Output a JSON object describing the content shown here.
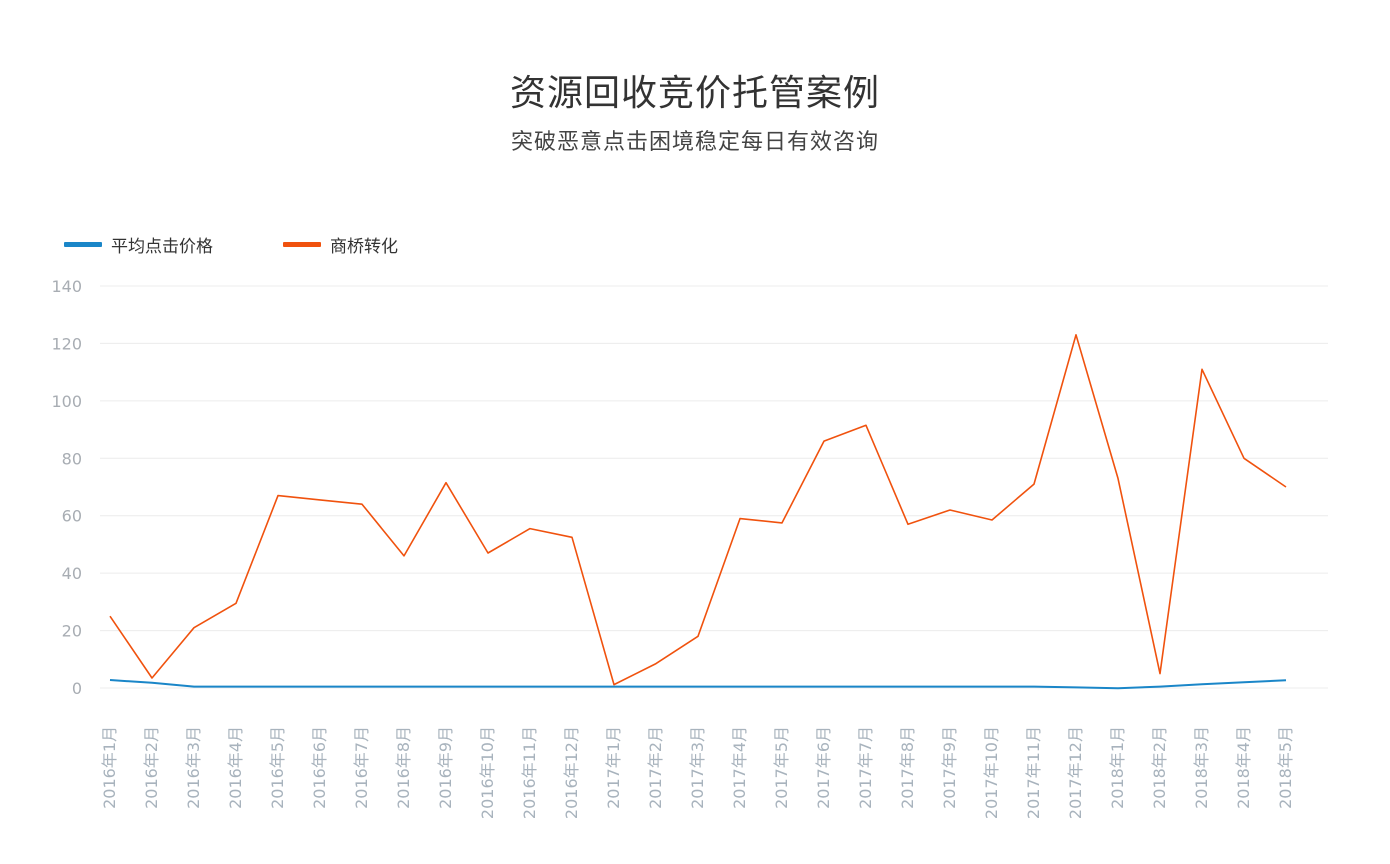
{
  "header": {
    "title": "资源回收竞价托管案例",
    "subtitle": "突破恶意点击困境稳定每日有效咨询"
  },
  "legend": [
    {
      "label": "平均点击价格",
      "color": "#1a86c8"
    },
    {
      "label": "商桥转化",
      "color": "#f0520e"
    }
  ],
  "chart_data": {
    "type": "line",
    "title": "资源回收竞价托管案例",
    "subtitle": "突破恶意点击困境稳定每日有效咨询",
    "xlabel": "",
    "ylabel": "",
    "ylim": [
      0,
      140
    ],
    "yticks": [
      0,
      20,
      40,
      60,
      80,
      100,
      120,
      140
    ],
    "grid": true,
    "legend_position": "top-left",
    "categories": [
      "2016年1月",
      "2016年2月",
      "2016年3月",
      "2016年4月",
      "2016年5月",
      "2016年6月",
      "2016年7月",
      "2016年8月",
      "2016年9月",
      "2016年10月",
      "2016年11月",
      "2016年12月",
      "2017年1月",
      "2017年2月",
      "2017年3月",
      "2017年4月",
      "2017年5月",
      "2017年6月",
      "2017年7月",
      "2017年8月",
      "2017年9月",
      "2017年10月",
      "2017年11月",
      "2017年12月",
      "2018年1月",
      "2018年2月",
      "2018年3月",
      "2018年4月",
      "2018年5月"
    ],
    "series": [
      {
        "name": "平均点击价格",
        "color": "#1a86c8",
        "values": [
          2.8,
          1.8,
          0.5,
          0.5,
          0.5,
          0.5,
          0.5,
          0.5,
          0.5,
          0.5,
          0.5,
          0.5,
          0.5,
          0.5,
          0.5,
          0.5,
          0.5,
          0.5,
          0.5,
          0.5,
          0.5,
          0.5,
          0.5,
          0.2,
          -0.1,
          0.5,
          1.3,
          2,
          2.7
        ]
      },
      {
        "name": "商桥转化",
        "color": "#f0520e",
        "values": [
          25,
          3.5,
          21,
          29.5,
          67,
          65.5,
          64,
          46,
          71.5,
          47,
          55.5,
          52.5,
          1.2,
          8.5,
          18,
          59,
          57.5,
          86,
          91.5,
          57,
          62,
          58.5,
          71,
          123,
          73,
          5,
          111,
          80,
          70
        ]
      }
    ]
  }
}
